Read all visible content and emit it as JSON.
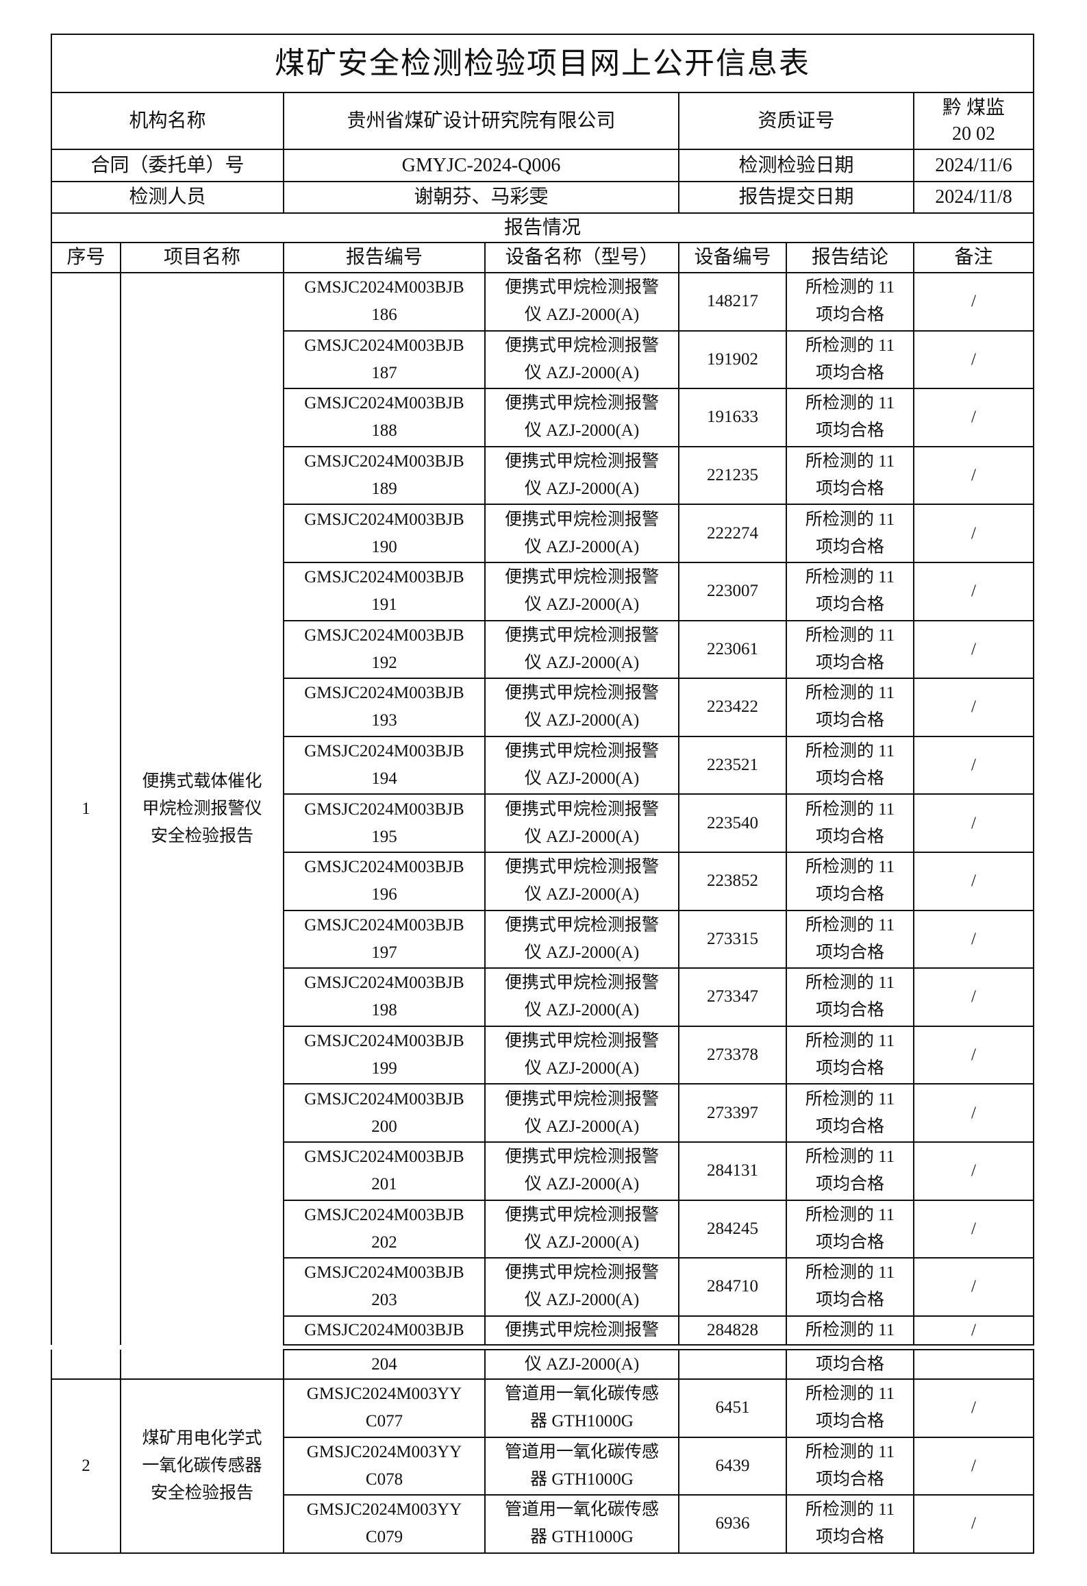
{
  "title": "煤矿安全检测检验项目网上公开信息表",
  "info": {
    "org_label": "机构名称",
    "org_value": "贵州省煤矿设计研究院有限公司",
    "qual_label": "资质证号",
    "qual_value_lines": [
      "黔 煤监",
      "20 02"
    ],
    "contract_label": "合同（委托单）号",
    "contract_value": "GMYJC-2024-Q006",
    "test_date_label": "检测检验日期",
    "test_date_value": "2024/11/6",
    "staff_label": "检测人员",
    "staff_value": "谢朝芬、马彩雯",
    "submit_date_label": "报告提交日期",
    "submit_date_value": "2024/11/8"
  },
  "report_section": "报告情况",
  "columns": [
    "序号",
    "项目名称",
    "报告编号",
    "设备名称（型号）",
    "设备编号",
    "报告结论",
    "备注"
  ],
  "groups": [
    {
      "seq": "1",
      "project_lines": [
        "便携式载体催化",
        "甲烷检测报警仪",
        "安全检验报告"
      ],
      "rows": [
        {
          "report": [
            "GMSJC2024M003BJB",
            "186"
          ],
          "device": [
            "便携式甲烷检测报警",
            "仪 AZJ-2000(A)"
          ],
          "device_no": "148217",
          "conclusion": [
            "所检测的 11",
            "项均合格"
          ],
          "note": "/"
        },
        {
          "report": [
            "GMSJC2024M003BJB",
            "187"
          ],
          "device": [
            "便携式甲烷检测报警",
            "仪 AZJ-2000(A)"
          ],
          "device_no": "191902",
          "conclusion": [
            "所检测的 11",
            "项均合格"
          ],
          "note": "/"
        },
        {
          "report": [
            "GMSJC2024M003BJB",
            "188"
          ],
          "device": [
            "便携式甲烷检测报警",
            "仪 AZJ-2000(A)"
          ],
          "device_no": "191633",
          "conclusion": [
            "所检测的 11",
            "项均合格"
          ],
          "note": "/"
        },
        {
          "report": [
            "GMSJC2024M003BJB",
            "189"
          ],
          "device": [
            "便携式甲烷检测报警",
            "仪 AZJ-2000(A)"
          ],
          "device_no": "221235",
          "conclusion": [
            "所检测的 11",
            "项均合格"
          ],
          "note": "/"
        },
        {
          "report": [
            "GMSJC2024M003BJB",
            "190"
          ],
          "device": [
            "便携式甲烷检测报警",
            "仪 AZJ-2000(A)"
          ],
          "device_no": "222274",
          "conclusion": [
            "所检测的 11",
            "项均合格"
          ],
          "note": "/"
        },
        {
          "report": [
            "GMSJC2024M003BJB",
            "191"
          ],
          "device": [
            "便携式甲烷检测报警",
            "仪 AZJ-2000(A)"
          ],
          "device_no": "223007",
          "conclusion": [
            "所检测的 11",
            "项均合格"
          ],
          "note": "/"
        },
        {
          "report": [
            "GMSJC2024M003BJB",
            "192"
          ],
          "device": [
            "便携式甲烷检测报警",
            "仪 AZJ-2000(A)"
          ],
          "device_no": "223061",
          "conclusion": [
            "所检测的 11",
            "项均合格"
          ],
          "note": "/"
        },
        {
          "report": [
            "GMSJC2024M003BJB",
            "193"
          ],
          "device": [
            "便携式甲烷检测报警",
            "仪 AZJ-2000(A)"
          ],
          "device_no": "223422",
          "conclusion": [
            "所检测的 11",
            "项均合格"
          ],
          "note": "/"
        },
        {
          "report": [
            "GMSJC2024M003BJB",
            "194"
          ],
          "device": [
            "便携式甲烷检测报警",
            "仪 AZJ-2000(A)"
          ],
          "device_no": "223521",
          "conclusion": [
            "所检测的 11",
            "项均合格"
          ],
          "note": "/"
        },
        {
          "report": [
            "GMSJC2024M003BJB",
            "195"
          ],
          "device": [
            "便携式甲烷检测报警",
            "仪 AZJ-2000(A)"
          ],
          "device_no": "223540",
          "conclusion": [
            "所检测的 11",
            "项均合格"
          ],
          "note": "/"
        },
        {
          "report": [
            "GMSJC2024M003BJB",
            "196"
          ],
          "device": [
            "便携式甲烷检测报警",
            "仪 AZJ-2000(A)"
          ],
          "device_no": "223852",
          "conclusion": [
            "所检测的 11",
            "项均合格"
          ],
          "note": "/"
        },
        {
          "report": [
            "GMSJC2024M003BJB",
            "197"
          ],
          "device": [
            "便携式甲烷检测报警",
            "仪 AZJ-2000(A)"
          ],
          "device_no": "273315",
          "conclusion": [
            "所检测的 11",
            "项均合格"
          ],
          "note": "/"
        },
        {
          "report": [
            "GMSJC2024M003BJB",
            "198"
          ],
          "device": [
            "便携式甲烷检测报警",
            "仪 AZJ-2000(A)"
          ],
          "device_no": "273347",
          "conclusion": [
            "所检测的 11",
            "项均合格"
          ],
          "note": "/"
        },
        {
          "report": [
            "GMSJC2024M003BJB",
            "199"
          ],
          "device": [
            "便携式甲烷检测报警",
            "仪 AZJ-2000(A)"
          ],
          "device_no": "273378",
          "conclusion": [
            "所检测的 11",
            "项均合格"
          ],
          "note": "/"
        },
        {
          "report": [
            "GMSJC2024M003BJB",
            "200"
          ],
          "device": [
            "便携式甲烷检测报警",
            "仪 AZJ-2000(A)"
          ],
          "device_no": "273397",
          "conclusion": [
            "所检测的 11",
            "项均合格"
          ],
          "note": "/"
        },
        {
          "report": [
            "GMSJC2024M003BJB",
            "201"
          ],
          "device": [
            "便携式甲烷检测报警",
            "仪 AZJ-2000(A)"
          ],
          "device_no": "284131",
          "conclusion": [
            "所检测的 11",
            "项均合格"
          ],
          "note": "/"
        },
        {
          "report": [
            "GMSJC2024M003BJB",
            "202"
          ],
          "device": [
            "便携式甲烷检测报警",
            "仪 AZJ-2000(A)"
          ],
          "device_no": "284245",
          "conclusion": [
            "所检测的 11",
            "项均合格"
          ],
          "note": "/"
        },
        {
          "report": [
            "GMSJC2024M003BJB",
            "203"
          ],
          "device": [
            "便携式甲烷检测报警",
            "仪 AZJ-2000(A)"
          ],
          "device_no": "284710",
          "conclusion": [
            "所检测的 11",
            "项均合格"
          ],
          "note": "/"
        },
        {
          "report": [
            "GMSJC2024M003BJB",
            "204"
          ],
          "device": [
            "便携式甲烷检测报警",
            "仪 AZJ-2000(A)"
          ],
          "device_no": "284828",
          "conclusion": [
            "所检测的 11",
            "项均合格"
          ],
          "note": "/"
        }
      ]
    },
    {
      "seq": "2",
      "project_lines": [
        "煤矿用电化学式",
        "一氧化碳传感器",
        "安全检验报告"
      ],
      "rows": [
        {
          "report": [
            "GMSJC2024M003YY",
            "C077"
          ],
          "device": [
            "管道用一氧化碳传感",
            "器 GTH1000G"
          ],
          "device_no": "6451",
          "conclusion": [
            "所检测的 11",
            "项均合格"
          ],
          "note": "/"
        },
        {
          "report": [
            "GMSJC2024M003YY",
            "C078"
          ],
          "device": [
            "管道用一氧化碳传感",
            "器 GTH1000G"
          ],
          "device_no": "6439",
          "conclusion": [
            "所检测的 11",
            "项均合格"
          ],
          "note": "/"
        },
        {
          "report": [
            "GMSJC2024M003YY",
            "C079"
          ],
          "device": [
            "管道用一氧化碳传感",
            "器 GTH1000G"
          ],
          "device_no": "6936",
          "conclusion": [
            "所检测的 11",
            "项均合格"
          ],
          "note": "/"
        }
      ]
    }
  ]
}
